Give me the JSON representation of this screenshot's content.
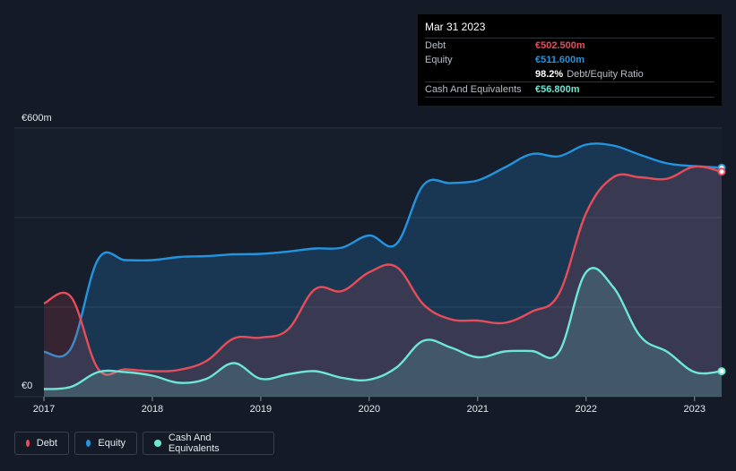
{
  "tooltip": {
    "date": "Mar 31 2023",
    "debt_label": "Debt",
    "debt_value": "€502.500m",
    "equity_label": "Equity",
    "equity_value": "€511.600m",
    "ratio_value": "98.2%",
    "ratio_label": "Debt/Equity Ratio",
    "cash_label": "Cash And Equivalents",
    "cash_value": "€56.800m"
  },
  "legend": {
    "debt": "Debt",
    "equity": "Equity",
    "cash": "Cash And Equivalents"
  },
  "colors": {
    "background": "#151b26",
    "debt": "#e64c5a",
    "equity": "#2394df",
    "cash": "#6ee6d4"
  },
  "chart_data": {
    "type": "area",
    "title": "",
    "xlabel": "",
    "ylabel": "",
    "y_axis_top_label": "€600m",
    "y_axis_bottom_label": "€0",
    "ylim": [
      0,
      600
    ],
    "xlim": [
      2017.0,
      2023.25
    ],
    "x_ticks": [
      {
        "value": 2017,
        "label": "2017"
      },
      {
        "value": 2018,
        "label": "2018"
      },
      {
        "value": 2019,
        "label": "2019"
      },
      {
        "value": 2020,
        "label": "2020"
      },
      {
        "value": 2021,
        "label": "2021"
      },
      {
        "value": 2022,
        "label": "2022"
      },
      {
        "value": 2023,
        "label": "2023"
      }
    ],
    "series": [
      {
        "name": "Equity",
        "color": "#2394df",
        "points": [
          [
            2017.0,
            100
          ],
          [
            2017.25,
            108
          ],
          [
            2017.5,
            307
          ],
          [
            2017.75,
            305
          ],
          [
            2018.0,
            305
          ],
          [
            2018.25,
            312
          ],
          [
            2018.5,
            314
          ],
          [
            2018.75,
            318
          ],
          [
            2019.0,
            319
          ],
          [
            2019.25,
            324
          ],
          [
            2019.5,
            331
          ],
          [
            2019.75,
            333
          ],
          [
            2020.0,
            360
          ],
          [
            2020.25,
            341
          ],
          [
            2020.5,
            473
          ],
          [
            2020.75,
            477
          ],
          [
            2021.0,
            483
          ],
          [
            2021.25,
            512
          ],
          [
            2021.5,
            542
          ],
          [
            2021.75,
            537
          ],
          [
            2022.0,
            563
          ],
          [
            2022.25,
            561
          ],
          [
            2022.5,
            540
          ],
          [
            2022.75,
            521
          ],
          [
            2023.0,
            515
          ],
          [
            2023.25,
            511.6
          ]
        ]
      },
      {
        "name": "Debt",
        "color": "#e64c5a",
        "points": [
          [
            2017.0,
            208
          ],
          [
            2017.25,
            223
          ],
          [
            2017.5,
            62
          ],
          [
            2017.75,
            61
          ],
          [
            2018.0,
            57
          ],
          [
            2018.25,
            60
          ],
          [
            2018.5,
            80
          ],
          [
            2018.75,
            130
          ],
          [
            2019.0,
            132
          ],
          [
            2019.25,
            150
          ],
          [
            2019.5,
            240
          ],
          [
            2019.75,
            236
          ],
          [
            2020.0,
            278
          ],
          [
            2020.25,
            290
          ],
          [
            2020.5,
            206
          ],
          [
            2020.75,
            173
          ],
          [
            2021.0,
            170
          ],
          [
            2021.25,
            165
          ],
          [
            2021.5,
            190
          ],
          [
            2021.75,
            230
          ],
          [
            2022.0,
            410
          ],
          [
            2022.25,
            490
          ],
          [
            2022.5,
            490
          ],
          [
            2022.75,
            487
          ],
          [
            2023.0,
            514
          ],
          [
            2023.25,
            502.5
          ]
        ]
      },
      {
        "name": "Cash And Equivalents",
        "color": "#6ee6d4",
        "points": [
          [
            2017.0,
            17
          ],
          [
            2017.25,
            22
          ],
          [
            2017.5,
            55
          ],
          [
            2017.75,
            55
          ],
          [
            2018.0,
            47
          ],
          [
            2018.25,
            31
          ],
          [
            2018.5,
            40
          ],
          [
            2018.75,
            75
          ],
          [
            2019.0,
            40
          ],
          [
            2019.25,
            50
          ],
          [
            2019.5,
            57
          ],
          [
            2019.75,
            42
          ],
          [
            2020.0,
            38
          ],
          [
            2020.25,
            65
          ],
          [
            2020.5,
            125
          ],
          [
            2020.75,
            110
          ],
          [
            2021.0,
            88
          ],
          [
            2021.25,
            101
          ],
          [
            2021.5,
            102
          ],
          [
            2021.75,
            100
          ],
          [
            2022.0,
            278
          ],
          [
            2022.25,
            245
          ],
          [
            2022.5,
            135
          ],
          [
            2022.75,
            100
          ],
          [
            2023.0,
            55
          ],
          [
            2023.25,
            56.8
          ]
        ]
      }
    ]
  }
}
